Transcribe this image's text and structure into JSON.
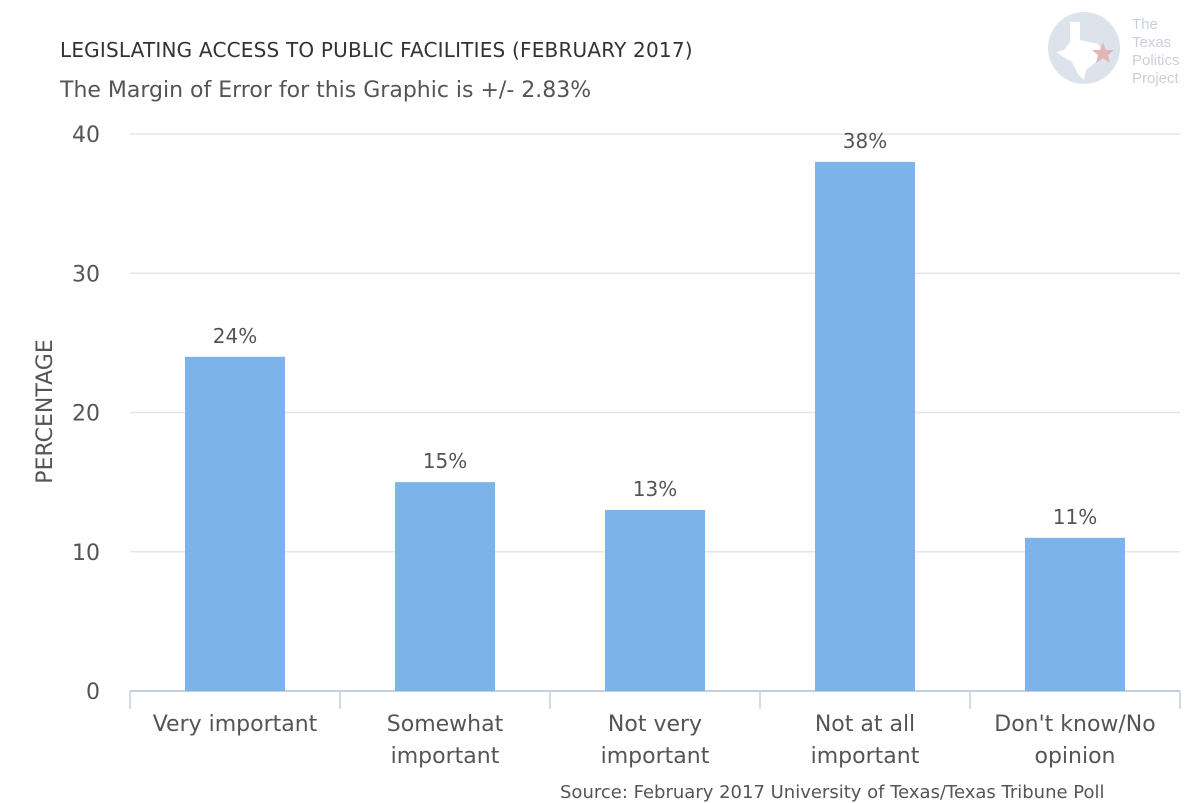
{
  "header": {
    "title": "LEGISLATING ACCESS TO PUBLIC FACILITIES (FEBRUARY 2017)",
    "subtitle": "The Margin of Error for this Graphic is +/- 2.83%"
  },
  "logo": {
    "line1": "The",
    "line2": "Texas",
    "line3": "Politics",
    "line4": "Project"
  },
  "source": "Source: February 2017 University of Texas/Texas Tribune Poll",
  "colors": {
    "bar": "#7cb4ea",
    "grid": "#e6e6e6",
    "axis": "#c0d0e0",
    "text": "#555555"
  },
  "chart_data": {
    "type": "bar",
    "categories": [
      [
        "Very important"
      ],
      [
        "Somewhat",
        "important"
      ],
      [
        "Not very",
        "important"
      ],
      [
        "Not at all",
        "important"
      ],
      [
        "Don't know/No",
        "opinion"
      ]
    ],
    "values": [
      24,
      15,
      13,
      38,
      11
    ],
    "data_labels": [
      "24%",
      "15%",
      "13%",
      "38%",
      "11%"
    ],
    "ylabel": "PERCENTAGE",
    "ylim": [
      0,
      40
    ],
    "yticks": [
      0,
      10,
      20,
      30,
      40
    ],
    "grid": true,
    "legend": "none"
  }
}
